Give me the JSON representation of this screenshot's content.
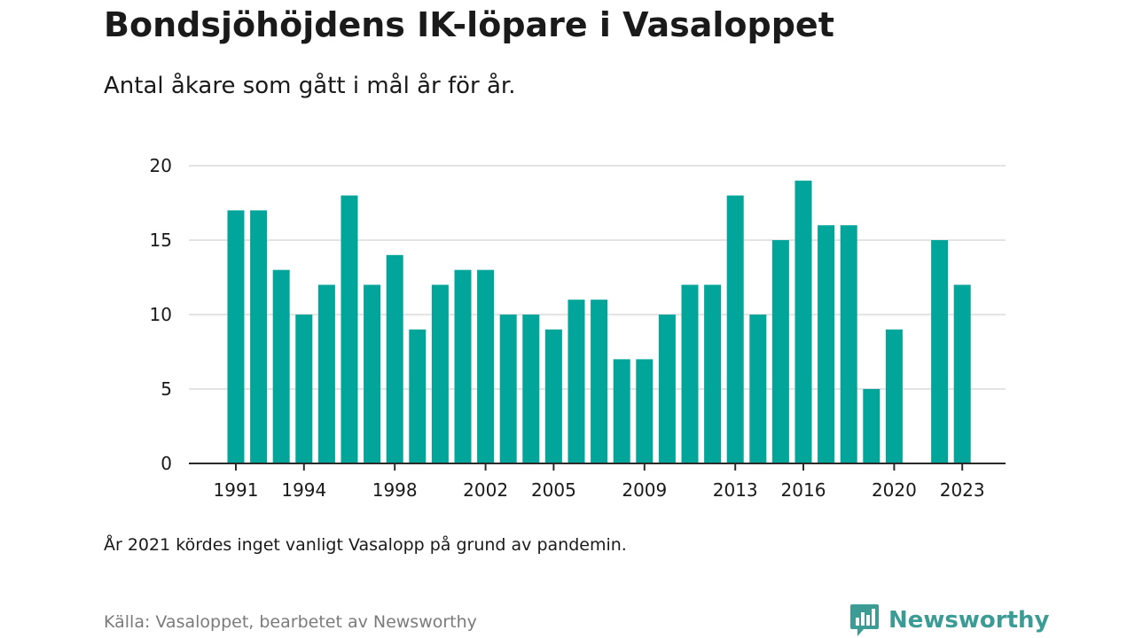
{
  "header": {
    "title": "Bondsjöhöjdens IK-löpare i Vasaloppet",
    "subtitle": "Antal åkare som gått i mål år för år."
  },
  "chart_data": {
    "type": "bar",
    "title": "Bondsjöhöjdens IK-löpare i Vasaloppet",
    "subtitle": "Antal åkare som gått i mål år för år.",
    "xlabel": "",
    "ylabel": "",
    "ylim": [
      0,
      20
    ],
    "yticks": [
      "0",
      "5",
      "10",
      "15",
      "20"
    ],
    "xticks": [
      "1991",
      "1994",
      "1998",
      "2002",
      "2005",
      "2009",
      "2013",
      "2016",
      "2020",
      "2023"
    ],
    "categories": [
      1991,
      1992,
      1993,
      1994,
      1995,
      1996,
      1997,
      1998,
      1999,
      2000,
      2001,
      2002,
      2003,
      2004,
      2005,
      2006,
      2007,
      2008,
      2009,
      2010,
      2011,
      2012,
      2013,
      2014,
      2015,
      2016,
      2017,
      2018,
      2019,
      2020,
      2021,
      2022,
      2023
    ],
    "values": [
      17,
      17,
      13,
      10,
      12,
      18,
      12,
      14,
      9,
      12,
      13,
      13,
      10,
      10,
      9,
      11,
      11,
      7,
      7,
      10,
      12,
      12,
      18,
      10,
      15,
      19,
      16,
      16,
      5,
      9,
      null,
      15,
      12
    ],
    "bar_color": "#02a59a",
    "grid": true,
    "legend": "none"
  },
  "footer": {
    "note": "År 2021 kördes inget vanligt Vasalopp på grund av pandemin.",
    "source": "Källa: Vasaloppet, bearbetet av Newsworthy",
    "brand": "Newsworthy",
    "brand_color": "#3a9c94"
  }
}
